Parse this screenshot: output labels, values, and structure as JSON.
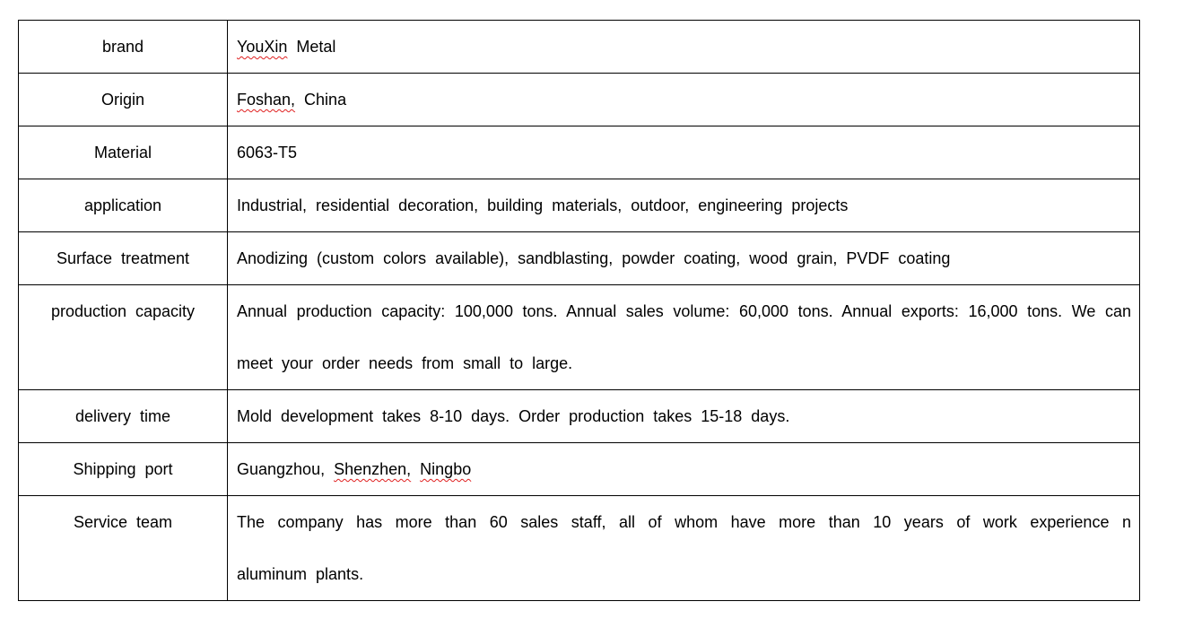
{
  "rows": [
    {
      "label": "brand",
      "v1": "YouXin",
      "v2": " Metal"
    },
    {
      "label": "Origin",
      "v1": "Foshan,",
      "v2": " China"
    },
    {
      "label": "Material",
      "value": "6063-T5"
    },
    {
      "label": "application",
      "value": "Industrial, residential decoration, building materials, outdoor, engineering projects"
    },
    {
      "label": "Surface treatment",
      "value": "Anodizing (custom colors available), sandblasting, powder coating, wood grain, PVDF coating"
    },
    {
      "label": "production capacity",
      "value": "Annual production capacity: 100,000 tons. Annual sales volume: 60,000 tons. Annual exports: 16,000 tons. We can meet your order needs from small to large."
    },
    {
      "label": "delivery time",
      "value": "Mold development takes 8-10 days. Order production takes 15-18 days."
    },
    {
      "label": "Shipping port",
      "v1": "Guangzhou, ",
      "v2": "Shenzhen,",
      "v3": " ",
      "v4": "Ningbo"
    },
    {
      "label": "Service team",
      "value": "The company has more than 60 sales staff, all of whom have more than 10 years of work experience n aluminum plants."
    }
  ]
}
